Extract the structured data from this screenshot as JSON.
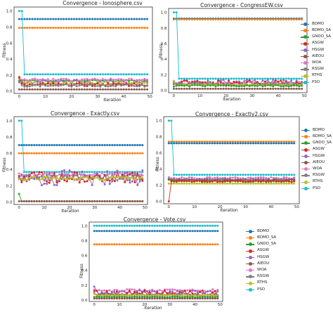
{
  "colors": {
    "BDMO": "#1f77b4",
    "BDMO_SA": "#ff7f0e",
    "GNDO_SA": "#2ca02c",
    "ASGW": "#d62728",
    "HSGW": "#9467bd",
    "AIEOU": "#8c564b",
    "WOA": "#e377c2",
    "RSGW": "#7f7f7f",
    "RTHS": "#bcbd22",
    "PSO": "#17becf"
  },
  "chart_data": [
    {
      "type": "line",
      "title": "Convergence - Ionosphere.csv",
      "xlabel": "Iteration",
      "ylabel": "Fitness",
      "xlim": [
        -2,
        51
      ],
      "ylim": [
        -0.03,
        1.05
      ],
      "xticks": [
        0,
        10,
        20,
        30,
        40,
        50
      ],
      "yticks": [
        0.0,
        0.2,
        0.4,
        0.6,
        0.8,
        1.0
      ],
      "ytick_labels": [
        "0.0",
        "0.2",
        "0.4",
        "0.6",
        "0.8",
        "1.0"
      ],
      "grid": false,
      "legend": "none",
      "series": [
        {
          "key": "BDMO",
          "start": 0.9,
          "level": 0.9,
          "noise": 0
        },
        {
          "key": "BDMO_SA",
          "start": 0.79,
          "level": 0.79,
          "noise": 0
        },
        {
          "key": "PSO",
          "start": 1.0,
          "level": 0.21,
          "noise": 0
        },
        {
          "key": "GNDO_SA",
          "start": 0.13,
          "level": 0.13,
          "noise": 0.01
        },
        {
          "key": "WOA",
          "start": 0.16,
          "level": 0.14,
          "noise": 0.015
        },
        {
          "key": "HSGW",
          "start": 0.11,
          "level": 0.11,
          "noise": 0.03
        },
        {
          "key": "RTHS",
          "start": 0.18,
          "level": 0.1,
          "noise": 0.02
        },
        {
          "key": "ASGW",
          "start": 0.17,
          "level": 0.08,
          "noise": 0.02
        },
        {
          "key": "RSGW",
          "start": 0.12,
          "level": 0.07,
          "noise": 0.015
        },
        {
          "key": "AIEOU",
          "start": 0.02,
          "level": 0.02,
          "noise": 0
        }
      ]
    },
    {
      "type": "line",
      "title": "Convergence - CongressEW.csv",
      "xlabel": "Iteration",
      "ylabel": "Fitness",
      "xlim": [
        -2,
        51
      ],
      "ylim": [
        -0.03,
        1.05
      ],
      "xticks": [
        0,
        10,
        20,
        30,
        40,
        50
      ],
      "yticks": [
        0.0,
        0.2,
        0.4,
        0.6,
        0.8,
        1.0
      ],
      "ytick_labels": [
        "0.0",
        "0.2",
        "0.4",
        "0.6",
        "0.8",
        "1.0"
      ],
      "grid": false,
      "legend": "right",
      "series": [
        {
          "key": "BDMO",
          "start": 0.92,
          "level": 0.92,
          "noise": 0
        },
        {
          "key": "BDMO_SA",
          "start": 0.91,
          "level": 0.91,
          "noise": 0
        },
        {
          "key": "PSO",
          "start": 1.0,
          "level": 0.15,
          "noise": 0
        },
        {
          "key": "HSGW",
          "start": 0.1,
          "level": 0.1,
          "noise": 0.04
        },
        {
          "key": "WOA",
          "start": 0.09,
          "level": 0.09,
          "noise": 0.02
        },
        {
          "key": "ASGW",
          "start": 0.12,
          "level": 0.09,
          "noise": 0.04
        },
        {
          "key": "RSGW",
          "start": 0.08,
          "level": 0.08,
          "noise": 0.02
        },
        {
          "key": "RTHS",
          "start": 0.12,
          "level": 0.07,
          "noise": 0.01
        },
        {
          "key": "GNDO_SA",
          "start": 0.05,
          "level": 0.06,
          "noise": 0.01
        },
        {
          "key": "AIEOU",
          "start": 0.02,
          "level": 0.02,
          "noise": 0
        }
      ]
    },
    {
      "type": "line",
      "title": "Convergence - Exactly.csv",
      "xlabel": "Iteration",
      "ylabel": "Fitness",
      "xlim": [
        -2,
        51
      ],
      "ylim": [
        -0.03,
        1.05
      ],
      "xticks": [
        0,
        10,
        20,
        30,
        40,
        50
      ],
      "yticks": [
        0.0,
        0.2,
        0.4,
        0.6,
        0.8,
        1.0
      ],
      "ytick_labels": [
        "0.0",
        "0.2",
        "0.4",
        "0.6",
        "0.8",
        "1.0"
      ],
      "grid": false,
      "legend": "none",
      "series": [
        {
          "key": "BDMO",
          "start": 0.7,
          "level": 0.7,
          "noise": 0
        },
        {
          "key": "BDMO_SA",
          "start": 0.6,
          "level": 0.6,
          "noise": 0
        },
        {
          "key": "PSO",
          "start": 1.0,
          "level": 0.37,
          "noise": 0
        },
        {
          "key": "WOA",
          "start": 0.35,
          "level": 0.34,
          "noise": 0.02
        },
        {
          "key": "RSGW",
          "start": 0.3,
          "level": 0.3,
          "noise": 0.04
        },
        {
          "key": "ASGW",
          "start": 0.32,
          "level": 0.3,
          "noise": 0.07
        },
        {
          "key": "HSGW",
          "start": 0.3,
          "level": 0.3,
          "noise": 0.1
        },
        {
          "key": "RTHS",
          "start": 0.28,
          "level": 0.29,
          "noise": 0.02
        },
        {
          "key": "GNDO_SA",
          "start": 0.1,
          "level": 0.01,
          "noise": 0
        },
        {
          "key": "AIEOU",
          "start": 0.01,
          "level": 0.01,
          "noise": 0
        }
      ]
    },
    {
      "type": "line",
      "title": "Convergence - Exactly2.csv",
      "xlabel": "Iteration",
      "ylabel": "Fitness",
      "xlim": [
        -2,
        51
      ],
      "ylim": [
        -0.03,
        1.05
      ],
      "xticks": [
        0,
        10,
        20,
        30,
        40,
        50
      ],
      "yticks": [
        0.0,
        0.2,
        0.4,
        0.6,
        0.8,
        1.0
      ],
      "ytick_labels": [
        "0.0",
        "0.2",
        "0.4",
        "0.6",
        "0.8",
        "1.0"
      ],
      "grid": false,
      "legend": "right",
      "series": [
        {
          "key": "BDMO_SA",
          "start": 0.74,
          "level": 0.74,
          "noise": 0
        },
        {
          "key": "BDMO",
          "start": 0.72,
          "level": 0.72,
          "noise": 0
        },
        {
          "key": "PSO",
          "start": 1.0,
          "level": 0.33,
          "noise": 0
        },
        {
          "key": "WOA",
          "start": 0.3,
          "level": 0.29,
          "noise": 0.01
        },
        {
          "key": "RSGW",
          "start": 0.28,
          "level": 0.27,
          "noise": 0.01
        },
        {
          "key": "HSGW",
          "start": 0.28,
          "level": 0.27,
          "noise": 0.01
        },
        {
          "key": "AIEOU",
          "start": 0.27,
          "level": 0.26,
          "noise": 0.01
        },
        {
          "key": "GNDO_SA",
          "start": 0.27,
          "level": 0.25,
          "noise": 0.01
        },
        {
          "key": "RTHS",
          "start": 0.22,
          "level": 0.22,
          "noise": 0
        },
        {
          "key": "ASGW",
          "start": 0.0,
          "level": 0.25,
          "noise": 0.01
        }
      ]
    },
    {
      "type": "line",
      "title": "Convergence - Vote.csv",
      "xlabel": "Iteration",
      "ylabel": "Fitness",
      "xlim": [
        -2,
        51
      ],
      "ylim": [
        -0.02,
        1.05
      ],
      "xticks": [
        0,
        10,
        20,
        30,
        40,
        50
      ],
      "yticks": [
        0.0,
        0.2,
        0.4,
        0.6,
        0.8,
        1.0
      ],
      "ytick_labels": [
        "0.0",
        "0.2",
        "0.4",
        "0.6",
        "0.8",
        "1.0"
      ],
      "grid": false,
      "legend": "right",
      "series": [
        {
          "key": "PSO",
          "start": 1.0,
          "level": 1.0,
          "noise": 0
        },
        {
          "key": "BDMO",
          "start": 0.93,
          "level": 0.93,
          "noise": 0
        },
        {
          "key": "BDMO_SA",
          "start": 0.75,
          "level": 0.75,
          "noise": 0
        },
        {
          "key": "WOA",
          "start": 0.14,
          "level": 0.13,
          "noise": 0.015
        },
        {
          "key": "HSGW",
          "start": 0.18,
          "level": 0.1,
          "noise": 0.03
        },
        {
          "key": "ASGW",
          "start": 0.12,
          "level": 0.09,
          "noise": 0.04
        },
        {
          "key": "RSGW",
          "start": 0.09,
          "level": 0.07,
          "noise": 0.015
        },
        {
          "key": "RTHS",
          "start": 0.08,
          "level": 0.06,
          "noise": 0.01
        },
        {
          "key": "GNDO_SA",
          "start": 0.04,
          "level": 0.04,
          "noise": 0.005
        },
        {
          "key": "AIEOU",
          "start": 0.02,
          "level": 0.02,
          "noise": 0
        }
      ]
    }
  ],
  "legends": [
    {
      "entries": [
        "BDMO",
        "BDMO_SA",
        "GNDO_SA",
        "ASGW",
        "HSGW",
        "AIEOU",
        "WOA",
        "RSGW",
        "RTHS",
        "PSO"
      ]
    },
    {
      "entries": [
        "BDMO",
        "BDMO_SA",
        "GNDO_SA",
        "ASGW",
        "HSGW",
        "AIEOU",
        "WOA",
        "RSGW",
        "RTHS",
        "PSO"
      ]
    },
    {
      "entries": [
        "BDMO",
        "BDMO_SA",
        "GNDO_SA",
        "ASGW",
        "HSGW",
        "AIEOU",
        "WOA",
        "RSGW",
        "RTHS",
        "PSO"
      ]
    }
  ]
}
